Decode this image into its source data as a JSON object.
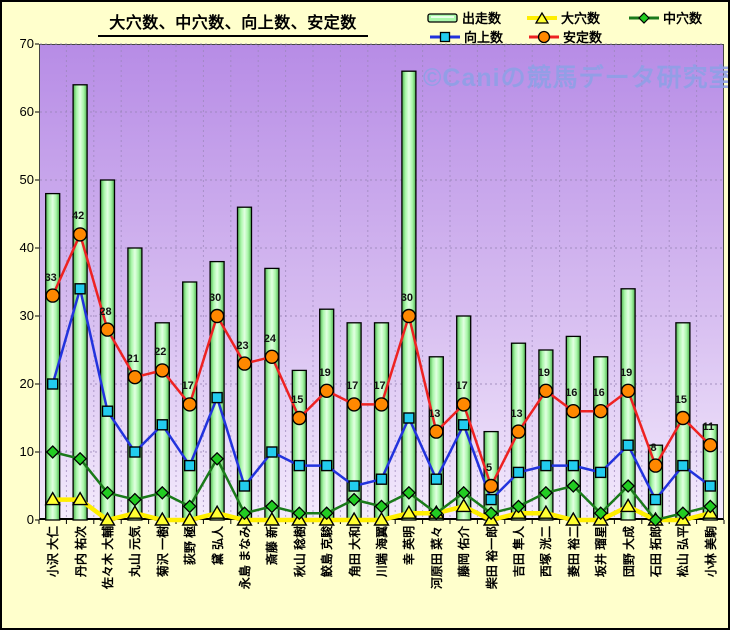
{
  "title": "大穴数、中穴数、向上数、安定数",
  "watermark": "©Caniの競馬データ研究室",
  "chart_data": {
    "type": "combo",
    "title": "大穴数、中穴数、向上数、安定数",
    "categories": [
      "小沢 大仁",
      "丹内 祐次",
      "佐々木 大輔",
      "丸山 元気",
      "菊沢 一樹",
      "荻野 極",
      "黛 弘人",
      "永島 まなみ",
      "斎藤 新",
      "秋山 稔樹",
      "鮫島 克駿",
      "角田 大和",
      "川端 海翼",
      "幸 英明",
      "河原田 菜々",
      "藤岡 佑介",
      "柴田 裕一郎",
      "吉田 隼人",
      "西塚 洸二",
      "菱田 裕二",
      "坂井 瑠星",
      "団野 大成",
      "石田 拓郎",
      "松山 弘平",
      "小林 美駒"
    ],
    "series": [
      {
        "name": "出走数",
        "render": "bar",
        "color": "#aaf8aa",
        "values": [
          48,
          64,
          50,
          40,
          29,
          35,
          38,
          46,
          37,
          22,
          31,
          29,
          29,
          66,
          24,
          30,
          13,
          26,
          25,
          27,
          24,
          34,
          11,
          29,
          14
        ]
      },
      {
        "name": "大穴数",
        "render": "line",
        "marker": "triangle",
        "line_color": "#ffee00",
        "marker_color": "#ffff33",
        "values": [
          3,
          3,
          0,
          1,
          0,
          0,
          1,
          0,
          0,
          0,
          0,
          0,
          0,
          1,
          1,
          2,
          0,
          1,
          1,
          0,
          0,
          2,
          0,
          0,
          1
        ]
      },
      {
        "name": "中穴数",
        "render": "line",
        "marker": "diamond",
        "line_color": "#1a7a1a",
        "marker_color": "#22cc22",
        "values": [
          10,
          9,
          4,
          3,
          4,
          2,
          9,
          1,
          2,
          1,
          1,
          3,
          2,
          4,
          1,
          4,
          1,
          2,
          4,
          5,
          1,
          5,
          0,
          1,
          2
        ]
      },
      {
        "name": "向上数",
        "render": "line",
        "marker": "square",
        "line_color": "#2233dd",
        "marker_color": "#22ccee",
        "values": [
          20,
          34,
          16,
          10,
          14,
          8,
          18,
          5,
          10,
          8,
          8,
          5,
          6,
          15,
          6,
          14,
          3,
          7,
          8,
          8,
          7,
          11,
          3,
          8,
          5
        ]
      },
      {
        "name": "安定数",
        "render": "line",
        "marker": "circle",
        "line_color": "#ee2222",
        "marker_color": "#ff8800",
        "point_labels": true,
        "values": [
          33,
          42,
          28,
          21,
          22,
          17,
          30,
          23,
          24,
          15,
          19,
          17,
          17,
          30,
          13,
          17,
          5,
          13,
          19,
          16,
          16,
          19,
          8,
          15,
          11
        ]
      }
    ],
    "ylim": [
      0,
      70
    ],
    "y_ticks": [
      0,
      10,
      20,
      30,
      40,
      50,
      60,
      70
    ],
    "grid": true,
    "legend_position": "top-right",
    "legend_rows": [
      [
        "出走数",
        "大穴数",
        "中穴数"
      ],
      [
        "向上数",
        "安定数"
      ]
    ]
  },
  "colors": {
    "page_bg": "#ffffcc",
    "plot_top": "#b78ce6",
    "plot_bottom": "#f3eafc",
    "bar_fill": "#aaf8aa",
    "grid": "#9a86b8",
    "watermark": "#8fa0e6"
  }
}
